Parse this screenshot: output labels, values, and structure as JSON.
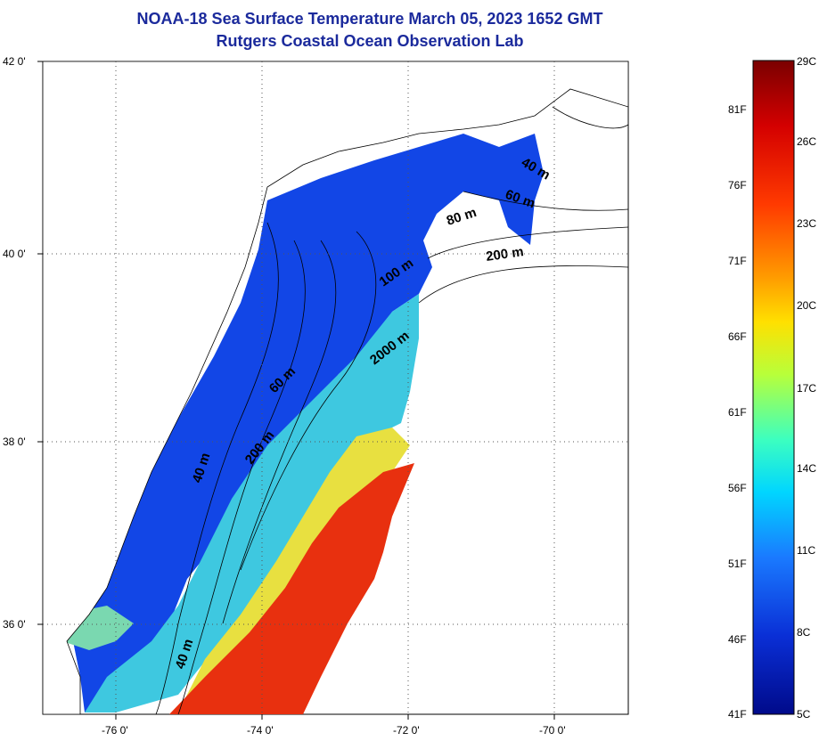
{
  "title": {
    "line1": "NOAA-18 Sea Surface Temperature March 05, 2023 1652 GMT",
    "line2": "Rutgers Coastal Ocean Observation Lab"
  },
  "axes": {
    "lat_labels": [
      "42 0'",
      "40 0'",
      "38 0'",
      "36 0'"
    ],
    "lon_labels": [
      "-76 0'",
      "-74 0'",
      "-72 0'",
      "-70 0'"
    ]
  },
  "contour_labels": [
    "40 m",
    "40 m",
    "60 m",
    "200 m",
    "2000 m",
    "100 m",
    "80 m",
    "200 m",
    "60 m",
    "40 m"
  ],
  "colorbar": {
    "fahrenheit": [
      "81F",
      "76F",
      "71F",
      "66F",
      "61F",
      "56F",
      "51F",
      "46F",
      "41F"
    ],
    "celsius": [
      "29C",
      "26C",
      "23C",
      "20C",
      "17C",
      "14C",
      "11C",
      "8C",
      "5C"
    ],
    "colors": [
      "#7a0000",
      "#d40000",
      "#ff3a00",
      "#ff9a00",
      "#ffe000",
      "#b8ff3a",
      "#3cffc0",
      "#00d6ff",
      "#1a7aff",
      "#0a2fd6",
      "#000a8a"
    ]
  },
  "colors": {
    "title": "#1b2a9c",
    "land": "#ffffff",
    "sst_cold": "#1040e0",
    "sst_cool": "#3aa0ff",
    "sst_mid": "#40e0c0",
    "sst_warm": "#f0e030",
    "sst_hot": "#e82a10"
  }
}
